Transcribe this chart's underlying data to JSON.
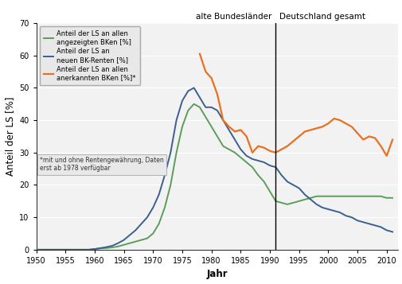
{
  "title": "",
  "xlabel": "Jahr",
  "ylabel": "Anteil der LS [%]",
  "ylim": [
    0,
    70
  ],
  "xlim": [
    1950,
    2012
  ],
  "yticks": [
    0,
    10,
    20,
    30,
    40,
    50,
    60,
    70
  ],
  "xticks": [
    1950,
    1955,
    1960,
    1965,
    1970,
    1975,
    1980,
    1985,
    1990,
    1995,
    2000,
    2005,
    2010
  ],
  "divider_x": 1991,
  "label_left": "alte Bundesländer",
  "label_right": "Deutschland gesamt",
  "legend_note": "*mit und ohne Rentengewährung, Daten\nerst ab 1978 verfügbar",
  "line_green_label": "Anteil der LS an allen\nangezeigten BKen [%]",
  "line_blue_label": "Anteil der LS an\nneuen BK-Renten [%]",
  "line_orange_label": "Anteil der LS an allen\nanerkannten BKen [%]*",
  "color_green": "#5a9e5a",
  "color_blue": "#3a6090",
  "color_orange": "#e87020",
  "background_color": "#f2f2f2",
  "grid_color": "#ffffff",
  "green_years": [
    1950,
    1951,
    1952,
    1953,
    1954,
    1955,
    1956,
    1957,
    1958,
    1959,
    1960,
    1961,
    1962,
    1963,
    1964,
    1965,
    1966,
    1967,
    1968,
    1969,
    1970,
    1971,
    1972,
    1973,
    1974,
    1975,
    1976,
    1977,
    1978,
    1979,
    1980,
    1981,
    1982,
    1983,
    1984,
    1985,
    1986,
    1987,
    1988,
    1989,
    1990,
    1991,
    1992,
    1993,
    1994,
    1995,
    1996,
    1997,
    1998,
    1999,
    2000,
    2001,
    2002,
    2003,
    2004,
    2005,
    2006,
    2007,
    2008,
    2009,
    2010,
    2011
  ],
  "green_values": [
    0.0,
    0.0,
    0.0,
    0.0,
    0.0,
    0.0,
    0.0,
    0.0,
    0.0,
    0.0,
    0.2,
    0.4,
    0.5,
    0.7,
    1.0,
    1.5,
    2.0,
    2.5,
    3.0,
    3.5,
    5.0,
    8.0,
    13.0,
    20.0,
    30.0,
    38.0,
    43.0,
    45.0,
    44.0,
    41.0,
    38.0,
    35.0,
    32.0,
    31.0,
    30.0,
    28.5,
    27.0,
    25.5,
    23.0,
    21.0,
    18.0,
    15.0,
    14.5,
    14.0,
    14.5,
    15.0,
    15.5,
    16.0,
    16.5,
    16.5,
    16.5,
    16.5,
    16.5,
    16.5,
    16.5,
    16.5,
    16.5,
    16.5,
    16.5,
    16.5,
    16.0,
    16.0
  ],
  "blue_years": [
    1950,
    1951,
    1952,
    1953,
    1954,
    1955,
    1956,
    1957,
    1958,
    1959,
    1960,
    1961,
    1962,
    1963,
    1964,
    1965,
    1966,
    1967,
    1968,
    1969,
    1970,
    1971,
    1972,
    1973,
    1974,
    1975,
    1976,
    1977,
    1978,
    1979,
    1980,
    1981,
    1982,
    1983,
    1984,
    1985,
    1986,
    1987,
    1988,
    1989,
    1990,
    1991,
    1992,
    1993,
    1994,
    1995,
    1996,
    1997,
    1998,
    1999,
    2000,
    2001,
    2002,
    2003,
    2004,
    2005,
    2006,
    2007,
    2008,
    2009,
    2010,
    2011
  ],
  "blue_values": [
    0.0,
    0.0,
    0.0,
    0.0,
    0.0,
    0.0,
    0.0,
    0.0,
    0.0,
    0.0,
    0.2,
    0.5,
    0.8,
    1.2,
    2.0,
    3.0,
    4.5,
    6.0,
    8.0,
    10.0,
    13.0,
    17.0,
    23.0,
    30.0,
    40.0,
    46.0,
    49.0,
    50.0,
    47.0,
    44.0,
    44.0,
    43.0,
    40.0,
    37.0,
    34.0,
    31.0,
    29.0,
    28.0,
    27.5,
    27.0,
    26.0,
    25.5,
    23.0,
    21.0,
    20.0,
    19.0,
    17.0,
    15.5,
    14.0,
    13.0,
    12.5,
    12.0,
    11.5,
    10.5,
    10.0,
    9.0,
    8.5,
    8.0,
    7.5,
    7.0,
    6.0,
    5.5
  ],
  "orange_years": [
    1978,
    1979,
    1980,
    1981,
    1982,
    1983,
    1984,
    1985,
    1986,
    1987,
    1988,
    1989,
    1990,
    1991,
    1992,
    1993,
    1994,
    1995,
    1996,
    1997,
    1998,
    1999,
    2000,
    2001,
    2002,
    2003,
    2004,
    2005,
    2006,
    2007,
    2008,
    2009,
    2010,
    2011
  ],
  "orange_values": [
    60.5,
    55.0,
    53.0,
    48.0,
    40.0,
    38.0,
    36.5,
    37.0,
    35.0,
    30.0,
    32.0,
    31.5,
    30.5,
    30.0,
    31.0,
    32.0,
    33.5,
    35.0,
    36.5,
    37.0,
    37.5,
    38.0,
    39.0,
    40.5,
    40.0,
    39.0,
    38.0,
    36.0,
    34.0,
    35.0,
    34.5,
    32.0,
    29.0,
    34.0
  ]
}
